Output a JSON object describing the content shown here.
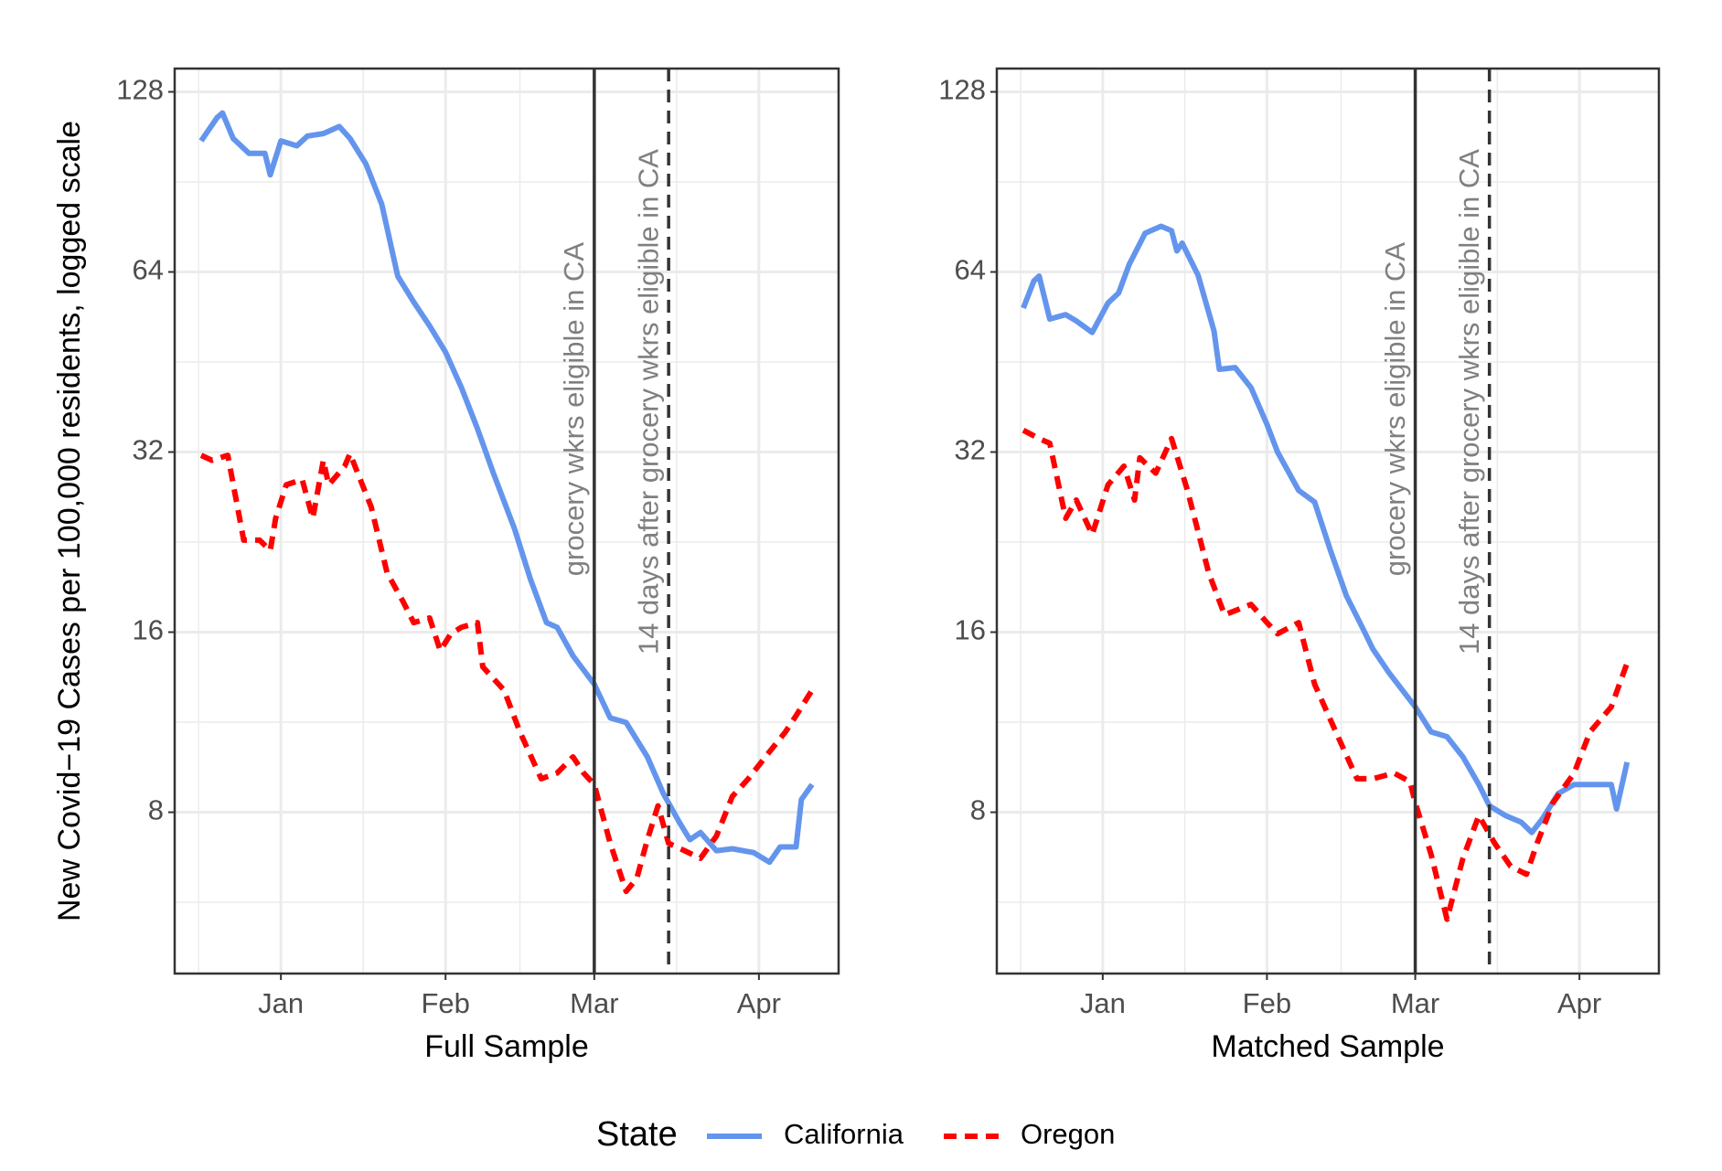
{
  "legend_title": "State",
  "chart_data": [
    {
      "type": "line",
      "ylabel": "New Covid−19 Cases per 100,000 residents, logged scale",
      "xlabel": "Full Sample",
      "log_y": true,
      "grid": true,
      "xlim": [
        -20,
        105
      ],
      "xticks": [
        {
          "value": 0,
          "label": "Jan"
        },
        {
          "value": 31,
          "label": "Feb"
        },
        {
          "value": 59,
          "label": "Mar"
        },
        {
          "value": 90,
          "label": "Apr"
        }
      ],
      "ylim": [
        4.3,
        140
      ],
      "yticks": [
        8,
        16,
        32,
        64,
        128
      ],
      "vlines": [
        {
          "x": 59,
          "style": "solid",
          "label": "grocery wkrs eligible in CA"
        },
        {
          "x": 73,
          "style": "dashed",
          "label": "14 days after grocery wkrs eligible in CA"
        }
      ],
      "series": [
        {
          "name": "California",
          "color": "#6495ED",
          "dash": "solid",
          "x": [
            -15,
            -12,
            -11,
            -9,
            -6,
            -3,
            -2,
            0,
            3,
            5,
            8,
            11,
            13,
            16,
            19,
            22,
            25,
            28,
            31,
            34,
            37,
            40,
            44,
            47,
            50,
            52,
            55,
            59,
            62,
            65,
            69,
            72,
            75,
            77,
            79,
            82,
            85,
            89,
            92,
            94,
            97,
            98,
            100
          ],
          "values": [
            106,
            116,
            118,
            107,
            101,
            101,
            93,
            106,
            104,
            108,
            109,
            112,
            107,
            97,
            83,
            63,
            57,
            52,
            47,
            41,
            35,
            29.5,
            23.8,
            19.6,
            16.6,
            16.3,
            14.6,
            13.1,
            11.5,
            11.3,
            9.9,
            8.6,
            7.7,
            7.2,
            7.4,
            6.9,
            6.95,
            6.85,
            6.6,
            7.0,
            7.0,
            8.4,
            8.9
          ]
        },
        {
          "name": "Oregon",
          "color": "#FF0000",
          "dash": "dashed",
          "x": [
            -15,
            -13,
            -10,
            -7,
            -4,
            -2,
            -1,
            1,
            4,
            6,
            8,
            9,
            12,
            13,
            17,
            20,
            23,
            25,
            28,
            30,
            32,
            34,
            37,
            38,
            42,
            45,
            49,
            52,
            55,
            57,
            59,
            62,
            65,
            67,
            69,
            71,
            73,
            76,
            79,
            82,
            85,
            88,
            92,
            95,
            97,
            100
          ],
          "values": [
            31.6,
            31,
            31.6,
            22.8,
            22.8,
            21.9,
            24.8,
            28.2,
            28.8,
            24.8,
            31,
            28.2,
            30.3,
            31.8,
            25.9,
            20.1,
            18,
            16.6,
            16.9,
            14.9,
            15.9,
            16.3,
            16.6,
            14,
            12.8,
            10.9,
            9.1,
            9.3,
            9.9,
            9.3,
            8.9,
            7.1,
            5.9,
            6.2,
            7.2,
            8.2,
            7.1,
            6.9,
            6.7,
            7.3,
            8.5,
            9.1,
            10.1,
            10.9,
            11.6,
            12.8
          ]
        }
      ]
    },
    {
      "type": "line",
      "xlabel": "Matched Sample",
      "log_y": true,
      "grid": true,
      "xlim": [
        -20,
        105
      ],
      "xticks": [
        {
          "value": 0,
          "label": "Jan"
        },
        {
          "value": 31,
          "label": "Feb"
        },
        {
          "value": 59,
          "label": "Mar"
        },
        {
          "value": 90,
          "label": "Apr"
        }
      ],
      "ylim": [
        4.3,
        140
      ],
      "yticks": [
        8,
        16,
        32,
        64,
        128
      ],
      "vlines": [
        {
          "x": 59,
          "style": "solid",
          "label": "grocery wkrs eligible in CA"
        },
        {
          "x": 73,
          "style": "dashed",
          "label": "14 days after grocery wkrs eligible in CA"
        }
      ],
      "series": [
        {
          "name": "California",
          "color": "#6495ED",
          "dash": "solid",
          "x": [
            -15,
            -13,
            -12,
            -10,
            -7,
            -5,
            -2,
            1,
            3,
            5,
            8,
            11,
            13,
            14,
            15,
            18,
            21,
            22,
            25,
            28,
            31,
            33,
            37,
            40,
            43,
            46,
            49,
            51,
            54,
            59,
            62,
            65,
            68,
            71,
            73,
            76,
            79,
            81,
            83,
            86,
            89,
            92,
            96,
            97,
            99
          ],
          "values": [
            55.7,
            61.8,
            63,
            53.4,
            54.3,
            53,
            50.7,
            56.8,
            59,
            65.9,
            74.3,
            76.3,
            75,
            69.4,
            71.5,
            63.2,
            51,
            44,
            44.3,
            41,
            35.6,
            32,
            27.6,
            26.4,
            21.9,
            18.4,
            16.3,
            15,
            13.7,
            12.0,
            10.9,
            10.7,
            9.9,
            8.9,
            8.2,
            7.9,
            7.7,
            7.4,
            7.8,
            8.6,
            8.9,
            8.9,
            8.9,
            8.1,
            9.7
          ]
        },
        {
          "name": "Oregon",
          "color": "#FF0000",
          "dash": "dashed",
          "x": [
            -15,
            -12,
            -10,
            -7,
            -5,
            -2,
            1,
            4,
            6,
            7,
            10,
            13,
            16,
            20,
            23,
            28,
            31,
            33,
            37,
            40,
            44,
            48,
            51,
            55,
            58,
            59,
            62,
            65,
            68,
            71,
            74,
            77,
            80,
            82,
            85,
            89,
            92,
            96,
            99
          ],
          "values": [
            34.8,
            33.7,
            33.1,
            24.8,
            26.6,
            23.3,
            28.2,
            30.3,
            26.6,
            31.3,
            29.5,
            33.7,
            27.6,
            20.1,
            17.1,
            17.8,
            16.6,
            15.9,
            16.6,
            13.1,
            10.9,
            9.1,
            9.1,
            9.3,
            9.0,
            8.3,
            6.8,
            5.3,
            6.7,
            7.9,
            7.1,
            6.5,
            6.3,
            7.1,
            8.3,
            9.3,
            10.9,
            12.0,
            14.2
          ]
        }
      ]
    }
  ]
}
